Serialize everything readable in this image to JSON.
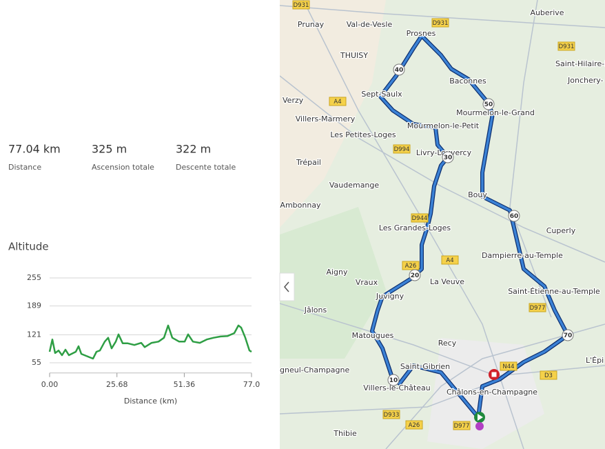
{
  "stats": [
    {
      "value": "77.04 km",
      "label": "Distance"
    },
    {
      "value": "325 m",
      "label": "Ascension totale"
    },
    {
      "value": "322 m",
      "label": "Descente totale"
    }
  ],
  "chart_data": {
    "type": "line",
    "title": "Altitude",
    "x_label": "Distance (km)",
    "color": "#2e9e44",
    "x": [
      0,
      1.05,
      2.1,
      3.42,
      4.73,
      6.04,
      7.36,
      9.99,
      11.04,
      12.09,
      15.24,
      16.56,
      17.87,
      19.18,
      21.02,
      22.34,
      23.65,
      25.23,
      26.28,
      27.86,
      29.7,
      32.33,
      34.95,
      36.27,
      38.9,
      41.52,
      43.63,
      45.2,
      46.78,
      49.41,
      51.51,
      52.82,
      54.66,
      57.29,
      59.92,
      62.55,
      65.17,
      67.8,
      70.43,
      72.01,
      73.06,
      74.63,
      76.21,
      77.0
    ],
    "values": [
      81,
      110,
      78,
      84,
      73,
      86,
      73,
      81,
      94,
      76,
      68,
      65,
      81,
      84,
      105,
      114,
      89,
      105,
      122,
      101,
      101,
      97,
      102,
      92,
      102,
      105,
      114,
      143,
      114,
      105,
      105,
      122,
      105,
      102,
      110,
      114,
      117,
      118,
      125,
      143,
      138,
      114,
      84,
      81
    ],
    "xlim": [
      0,
      77
    ],
    "ylim": [
      31,
      255
    ],
    "yticks": [
      255,
      189,
      121,
      55
    ],
    "xticks": [
      {
        "value": 0,
        "label": "0.00"
      },
      25.68,
      51.36,
      {
        "value": 77,
        "label": "77.0"
      }
    ],
    "grid": true
  },
  "map": {
    "places": [
      "Auberive",
      "Prunay",
      "Val-de-Vesle",
      "Prosnes",
      "THUISY",
      "Saint-Hilaire-le",
      "Jonchery-",
      "Baconnes",
      "Verzy",
      "Sept-Saulx",
      "Mourmelon-le-Grand",
      "Villers-Marmery",
      "Mourmelon-le-Petit",
      "Les Petites-Loges",
      "Livry-Louvercy",
      "Trépail",
      "Vaudemange",
      "Bouy",
      "Ambonnay",
      "Cuperly",
      "Les Grandes-Loges",
      "Dampierre-au-Temple",
      "Aigny",
      "Vraux",
      "La Veuve",
      "Saint-Étienne-au-Temple",
      "Juvigny",
      "Jâlons",
      "Matougues",
      "Recy",
      "L'Épi",
      "Saint-Gibrien",
      "gneul-Champagne",
      "Villers-le-Château",
      "Châlons-en-Champagne",
      "Thibie"
    ],
    "roads": [
      "D931",
      "D931",
      "D931",
      "A4",
      "D994",
      "D944",
      "A26",
      "A4",
      "D977",
      "N44",
      "D3",
      "D933",
      "A26",
      "D977"
    ],
    "markers": [
      "40",
      "50",
      "30",
      "60",
      "20",
      "70",
      "10"
    ]
  }
}
